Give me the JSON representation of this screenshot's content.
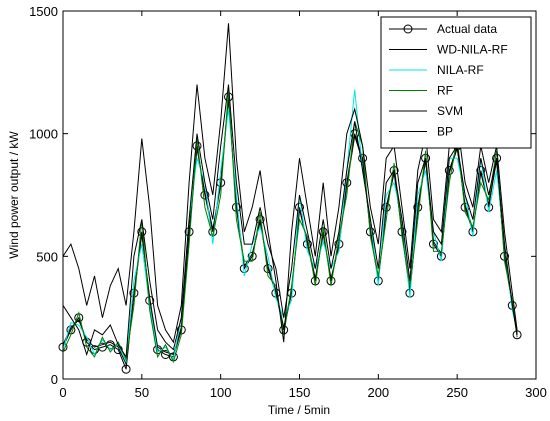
{
  "chart_data": {
    "type": "line",
    "title": "",
    "xlabel": "Time / 5min",
    "ylabel": "Wind power output / kW",
    "xlim": [
      0,
      300
    ],
    "ylim": [
      0,
      1500
    ],
    "xticks": [
      "0",
      "50",
      "100",
      "150",
      "200",
      "250",
      "300"
    ],
    "yticks": [
      "0",
      "500",
      "1000",
      "1500"
    ],
    "grid": false,
    "legend_position": "top-right",
    "x": [
      0,
      5,
      10,
      15,
      20,
      25,
      30,
      35,
      40,
      45,
      50,
      55,
      60,
      65,
      70,
      75,
      80,
      85,
      90,
      95,
      100,
      105,
      110,
      115,
      120,
      125,
      130,
      135,
      140,
      145,
      150,
      155,
      160,
      165,
      170,
      175,
      180,
      185,
      190,
      195,
      200,
      205,
      210,
      215,
      220,
      225,
      230,
      235,
      240,
      245,
      250,
      255,
      260,
      265,
      270,
      275,
      280,
      285,
      288
    ],
    "series": [
      {
        "name": "Actual data",
        "color": "#000000",
        "marker": "circle",
        "values": [
          130,
          200,
          250,
          150,
          120,
          130,
          140,
          120,
          40,
          350,
          600,
          320,
          120,
          100,
          90,
          200,
          600,
          950,
          750,
          600,
          800,
          1150,
          700,
          450,
          500,
          650,
          450,
          350,
          200,
          350,
          700,
          550,
          400,
          600,
          400,
          550,
          800,
          1000,
          900,
          600,
          400,
          700,
          850,
          600,
          350,
          700,
          900,
          550,
          500,
          850,
          950,
          700,
          600,
          850,
          700,
          900,
          500,
          300,
          180
        ]
      },
      {
        "name": "WD-NILA-RF",
        "color": "#000000",
        "values": [
          140,
          210,
          240,
          160,
          130,
          140,
          150,
          130,
          60,
          340,
          590,
          330,
          130,
          110,
          100,
          210,
          590,
          940,
          760,
          610,
          790,
          1140,
          710,
          460,
          510,
          640,
          460,
          360,
          210,
          360,
          690,
          560,
          410,
          590,
          410,
          540,
          790,
          990,
          890,
          610,
          410,
          690,
          840,
          610,
          360,
          690,
          890,
          560,
          510,
          840,
          940,
          710,
          610,
          840,
          710,
          890,
          510,
          310,
          190
        ]
      },
      {
        "name": "NILA-RF",
        "color": "#00e5e5",
        "values": [
          120,
          230,
          220,
          170,
          100,
          160,
          120,
          140,
          70,
          400,
          550,
          300,
          110,
          130,
          80,
          250,
          650,
          900,
          800,
          550,
          850,
          1100,
          750,
          420,
          550,
          620,
          500,
          330,
          250,
          320,
          750,
          520,
          450,
          560,
          450,
          520,
          850,
          1180,
          850,
          650,
          380,
          750,
          800,
          650,
          330,
          750,
          850,
          600,
          480,
          900,
          900,
          750,
          580,
          900,
          680,
          850,
          550,
          280,
          200
        ]
      },
      {
        "name": "RF",
        "color": "#008000",
        "values": [
          110,
          180,
          270,
          130,
          90,
          170,
          110,
          150,
          80,
          300,
          650,
          280,
          90,
          140,
          70,
          180,
          550,
          980,
          700,
          580,
          750,
          1180,
          650,
          480,
          480,
          680,
          420,
          380,
          180,
          380,
          650,
          580,
          380,
          620,
          380,
          580,
          750,
          1050,
          950,
          580,
          420,
          650,
          880,
          580,
          380,
          650,
          930,
          520,
          520,
          800,
          980,
          680,
          620,
          800,
          730,
          930,
          480,
          320,
          170
        ]
      },
      {
        "name": "SVM",
        "color": "#000000",
        "values": [
          500,
          550,
          450,
          300,
          420,
          250,
          380,
          450,
          300,
          600,
          980,
          700,
          300,
          200,
          150,
          300,
          800,
          1200,
          900,
          750,
          1050,
          1450,
          900,
          600,
          700,
          850,
          600,
          400,
          150,
          600,
          900,
          700,
          500,
          800,
          500,
          700,
          1000,
          1100,
          950,
          700,
          550,
          900,
          950,
          700,
          450,
          850,
          1000,
          650,
          600,
          950,
          1050,
          800,
          700,
          950,
          800,
          950,
          600,
          350,
          200
        ]
      },
      {
        "name": "BP",
        "color": "#000000",
        "values": [
          300,
          250,
          200,
          100,
          200,
          180,
          220,
          140,
          90,
          500,
          650,
          400,
          200,
          150,
          120,
          250,
          650,
          1000,
          800,
          650,
          950,
          1200,
          800,
          550,
          550,
          700,
          550,
          450,
          250,
          450,
          750,
          600,
          450,
          650,
          450,
          600,
          850,
          1050,
          850,
          650,
          450,
          800,
          850,
          650,
          400,
          800,
          900,
          600,
          550,
          900,
          950,
          750,
          650,
          900,
          750,
          900,
          550,
          300,
          180
        ]
      }
    ]
  }
}
